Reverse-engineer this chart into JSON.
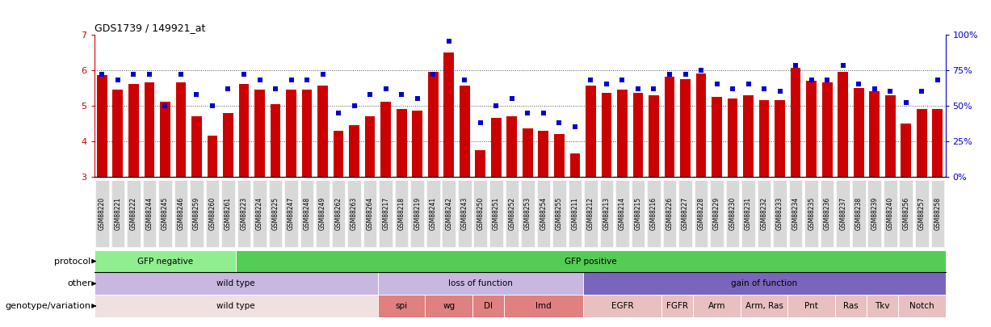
{
  "title": "GDS1739 / 149921_at",
  "samples": [
    "GSM88220",
    "GSM88221",
    "GSM88222",
    "GSM88244",
    "GSM88245",
    "GSM88246",
    "GSM88259",
    "GSM88260",
    "GSM88261",
    "GSM88223",
    "GSM88224",
    "GSM88225",
    "GSM88247",
    "GSM88248",
    "GSM88249",
    "GSM88262",
    "GSM88263",
    "GSM88264",
    "GSM88217",
    "GSM88218",
    "GSM88219",
    "GSM88241",
    "GSM88242",
    "GSM88243",
    "GSM88250",
    "GSM88251",
    "GSM88252",
    "GSM88253",
    "GSM88254",
    "GSM88255",
    "GSM88211",
    "GSM88212",
    "GSM88213",
    "GSM88214",
    "GSM88215",
    "GSM88216",
    "GSM88226",
    "GSM88227",
    "GSM88228",
    "GSM88229",
    "GSM88230",
    "GSM88231",
    "GSM88232",
    "GSM88233",
    "GSM88234",
    "GSM88235",
    "GSM88236",
    "GSM88237",
    "GSM88238",
    "GSM88239",
    "GSM88240",
    "GSM88256",
    "GSM88257",
    "GSM88258"
  ],
  "bar_values": [
    5.85,
    5.45,
    5.6,
    5.65,
    5.1,
    5.65,
    4.7,
    4.15,
    4.8,
    5.6,
    5.45,
    5.05,
    5.45,
    5.45,
    5.55,
    4.3,
    4.45,
    4.7,
    5.1,
    4.9,
    4.85,
    5.95,
    6.5,
    5.55,
    3.75,
    4.65,
    4.7,
    4.35,
    4.3,
    4.2,
    3.65,
    5.55,
    5.35,
    5.45,
    5.35,
    5.3,
    5.8,
    5.75,
    5.9,
    5.25,
    5.2,
    5.3,
    5.15,
    5.15,
    6.05,
    5.7,
    5.65,
    5.95,
    5.5,
    5.4,
    5.3,
    4.5,
    4.9,
    4.9
  ],
  "dot_values": [
    72,
    68,
    72,
    72,
    50,
    72,
    58,
    50,
    62,
    72,
    68,
    62,
    68,
    68,
    72,
    45,
    50,
    58,
    62,
    58,
    55,
    72,
    95,
    68,
    38,
    50,
    55,
    45,
    45,
    38,
    35,
    68,
    65,
    68,
    62,
    62,
    72,
    72,
    75,
    65,
    62,
    65,
    62,
    60,
    78,
    68,
    68,
    78,
    65,
    62,
    60,
    52,
    60,
    68
  ],
  "protocol_spans": [
    {
      "label": "GFP negative",
      "start": 0,
      "end": 9,
      "color": "#90EE90"
    },
    {
      "label": "GFP positive",
      "start": 9,
      "end": 54,
      "color": "#55CC55"
    }
  ],
  "other_spans": [
    {
      "label": "wild type",
      "start": 0,
      "end": 18,
      "color": "#C8B8E0"
    },
    {
      "label": "loss of function",
      "start": 18,
      "end": 31,
      "color": "#C8B8E0"
    },
    {
      "label": "gain of function",
      "start": 31,
      "end": 54,
      "color": "#7766BB"
    }
  ],
  "genotype_spans": [
    {
      "label": "wild type",
      "start": 0,
      "end": 18,
      "color": "#F0E0E0"
    },
    {
      "label": "spi",
      "start": 18,
      "end": 21,
      "color": "#E08080"
    },
    {
      "label": "wg",
      "start": 21,
      "end": 24,
      "color": "#E08080"
    },
    {
      "label": "Dl",
      "start": 24,
      "end": 26,
      "color": "#E08080"
    },
    {
      "label": "Imd",
      "start": 26,
      "end": 31,
      "color": "#E08080"
    },
    {
      "label": "EGFR",
      "start": 31,
      "end": 36,
      "color": "#E8C0C0"
    },
    {
      "label": "FGFR",
      "start": 36,
      "end": 38,
      "color": "#E8C0C0"
    },
    {
      "label": "Arm",
      "start": 38,
      "end": 41,
      "color": "#E8C0C0"
    },
    {
      "label": "Arm, Ras",
      "start": 41,
      "end": 44,
      "color": "#E8C0C0"
    },
    {
      "label": "Pnt",
      "start": 44,
      "end": 47,
      "color": "#E8C0C0"
    },
    {
      "label": "Ras",
      "start": 47,
      "end": 49,
      "color": "#E8C0C0"
    },
    {
      "label": "Tkv",
      "start": 49,
      "end": 51,
      "color": "#E8C0C0"
    },
    {
      "label": "Notch",
      "start": 51,
      "end": 54,
      "color": "#E8C0C0"
    }
  ],
  "bar_color": "#CC0000",
  "dot_color": "#0000CC",
  "ylim": [
    3.0,
    7.0
  ],
  "yticks_left": [
    3,
    4,
    5,
    6,
    7
  ],
  "y2lim": [
    0,
    100
  ],
  "y2ticks": [
    0,
    25,
    50,
    75,
    100
  ],
  "y2labels": [
    "0%",
    "25%",
    "50%",
    "75%",
    "100%"
  ],
  "background_color": "#ffffff",
  "sample_box_color": "#D8D8D8"
}
